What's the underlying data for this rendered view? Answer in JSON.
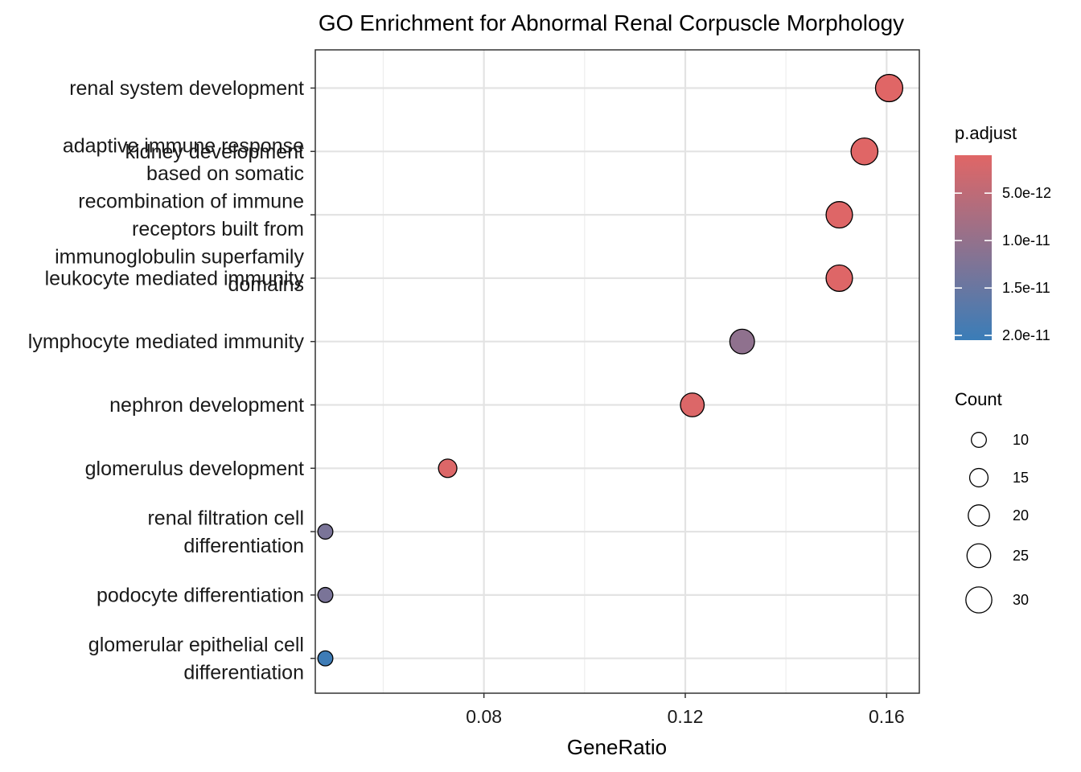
{
  "chart_data": {
    "type": "scatter",
    "title": "GO Enrichment for Abnormal Renal Corpuscle Morphology",
    "xlabel": "GeneRatio",
    "ylabel": "",
    "xlim": [
      0.0465,
      0.1665
    ],
    "x_ticks": [
      0.08,
      0.12,
      0.16
    ],
    "x_tick_labels": [
      "0.08",
      "0.12",
      "0.16"
    ],
    "grid": true,
    "categories": [
      "renal system development",
      "kidney development",
      "adaptive immune response based on somatic recombination of immune receptors built from immunoglobulin superfamily domains",
      "leukocyte mediated immunity",
      "lymphocyte mediated immunity",
      "nephron development",
      "glomerulus development",
      "renal filtration cell differentiation",
      "podocyte differentiation",
      "glomerular epithelial cell differentiation"
    ],
    "category_label_lines": [
      [
        "renal system development"
      ],
      [
        "kidney development"
      ],
      [
        "adaptive immune response",
        "based on somatic",
        "recombination of immune",
        "receptors built from",
        "immunoglobulin superfamily",
        "domains"
      ],
      [
        "leukocyte mediated immunity"
      ],
      [
        "lymphocyte mediated immunity"
      ],
      [
        "nephron development"
      ],
      [
        "glomerulus development"
      ],
      [
        "renal filtration cell",
        "differentiation"
      ],
      [
        "podocyte differentiation"
      ],
      [
        "glomerular epithelial cell",
        "differentiation"
      ]
    ],
    "points": [
      {
        "category": "renal system development",
        "gene_ratio": 0.1605,
        "count": 33,
        "p_adjust": 1e-12
      },
      {
        "category": "kidney development",
        "gene_ratio": 0.1556,
        "count": 32,
        "p_adjust": 1e-12
      },
      {
        "category": "adaptive immune response based on somatic recombination of immune receptors built from immunoglobulin superfamily domains",
        "gene_ratio": 0.1506,
        "count": 31,
        "p_adjust": 1.2e-12
      },
      {
        "category": "leukocyte mediated immunity",
        "gene_ratio": 0.1506,
        "count": 31,
        "p_adjust": 1.2e-12
      },
      {
        "category": "lymphocyte mediated immunity",
        "gene_ratio": 0.1313,
        "count": 27,
        "p_adjust": 1.05e-11
      },
      {
        "category": "nephron development",
        "gene_ratio": 0.1214,
        "count": 25,
        "p_adjust": 1.5e-12
      },
      {
        "category": "glomerulus development",
        "gene_ratio": 0.0728,
        "count": 15,
        "p_adjust": 1.5e-12
      },
      {
        "category": "renal filtration cell differentiation",
        "gene_ratio": 0.0485,
        "count": 10,
        "p_adjust": 1.3e-11
      },
      {
        "category": "podocyte differentiation",
        "gene_ratio": 0.0485,
        "count": 10,
        "p_adjust": 1.3e-11
      },
      {
        "category": "glomerular epithelial cell differentiation",
        "gene_ratio": 0.0485,
        "count": 10,
        "p_adjust": 2e-11
      }
    ],
    "color_legend": {
      "title": "p.adjust",
      "range": [
        1e-12,
        2.05e-11
      ],
      "low_color": "#E06666",
      "high_color": "#3A7DB8",
      "breaks": [
        5e-12,
        1e-11,
        1.5e-11,
        2e-11
      ],
      "labels": [
        "5.0e-12",
        "1.0e-11",
        "1.5e-11",
        "2.0e-11"
      ]
    },
    "size_legend": {
      "title": "Count",
      "values": [
        10,
        15,
        20,
        25,
        30
      ],
      "labels": [
        "10",
        "15",
        "20",
        "25",
        "30"
      ]
    },
    "legend_position": "right"
  }
}
